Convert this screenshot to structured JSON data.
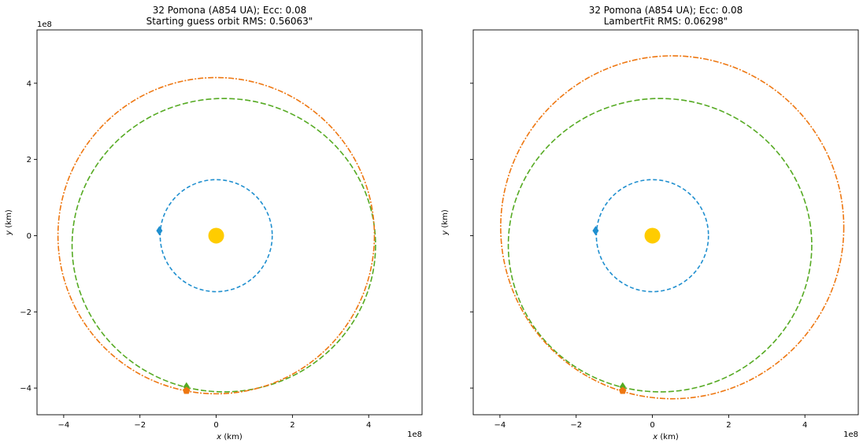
{
  "chart_data": [
    {
      "type": "scatter",
      "title_line1": "32 Pomona (A854 UA); Ecc: 0.08",
      "title_line2": "Starting guess orbit RMS: 0.56063\"",
      "xlabel": "x (km)",
      "ylabel": "y (km)",
      "offset_text_x": "1e8",
      "offset_text_y": "1e8",
      "xlim": [
        -4.7,
        5.4
      ],
      "ylim": [
        -4.7,
        5.4
      ],
      "xticks": [
        -4,
        -2,
        0,
        2,
        4
      ],
      "yticks": [
        -4,
        -2,
        0,
        2,
        4
      ],
      "xtick_labels": [
        "−4",
        "−2",
        "0",
        "2",
        "4"
      ],
      "ytick_labels": [
        "−4",
        "−2",
        "0",
        "2",
        "4"
      ],
      "show_ytick_labels": true,
      "grid": false,
      "sun": {
        "x": 0,
        "y": 0,
        "color": "#ffcc00"
      },
      "orbits": [
        {
          "cx": 0.0,
          "cy": 0.0,
          "rx": 1.47,
          "ry": 1.47,
          "color": "#1f8fcf",
          "dash": "5,3"
        },
        {
          "cx": 0.2,
          "cy": -0.25,
          "rx": 3.98,
          "ry": 3.85,
          "color": "#55aa22",
          "dash": "7,3"
        },
        {
          "cx": 0.0,
          "cy": 0.0,
          "rx": 4.15,
          "ry": 4.15,
          "color": "#ee7711",
          "dash": "7,2,2,2"
        }
      ],
      "markers": [
        {
          "x": -1.49,
          "y": 0.13,
          "color": "#1f8fcf",
          "shape": "diamond"
        },
        {
          "x": -0.78,
          "y": -3.97,
          "color": "#55aa22",
          "shape": "diamond"
        },
        {
          "x": -0.78,
          "y": -4.07,
          "color": "#ee7711",
          "shape": "pentagon"
        }
      ]
    },
    {
      "type": "scatter",
      "title_line1": "32 Pomona (A854 UA); Ecc: 0.08",
      "title_line2": "LambertFit RMS: 0.06298\"",
      "xlabel": "x (km)",
      "ylabel": "y (km)",
      "offset_text_x": "1e8",
      "offset_text_y": "",
      "xlim": [
        -4.7,
        5.4
      ],
      "ylim": [
        -4.7,
        5.4
      ],
      "xticks": [
        -4,
        -2,
        0,
        2,
        4
      ],
      "yticks": [
        -4,
        -2,
        0,
        2,
        4
      ],
      "xtick_labels": [
        "−4",
        "−2",
        "0",
        "2",
        "4"
      ],
      "ytick_labels": [],
      "show_ytick_labels": false,
      "grid": false,
      "sun": {
        "x": 0,
        "y": 0,
        "color": "#ffcc00"
      },
      "orbits": [
        {
          "cx": 0.0,
          "cy": 0.0,
          "rx": 1.47,
          "ry": 1.47,
          "color": "#1f8fcf",
          "dash": "5,3"
        },
        {
          "cx": 0.2,
          "cy": -0.25,
          "rx": 3.98,
          "ry": 3.85,
          "color": "#55aa22",
          "dash": "7,3"
        },
        {
          "cx": 0.52,
          "cy": 0.22,
          "rx": 4.5,
          "ry": 4.5,
          "color": "#ee7711",
          "dash": "7,2,2,2"
        }
      ],
      "markers": [
        {
          "x": -1.49,
          "y": 0.13,
          "color": "#1f8fcf",
          "shape": "diamond"
        },
        {
          "x": -0.78,
          "y": -3.97,
          "color": "#55aa22",
          "shape": "diamond"
        },
        {
          "x": -0.78,
          "y": -4.07,
          "color": "#ee7711",
          "shape": "pentagon"
        }
      ]
    }
  ]
}
